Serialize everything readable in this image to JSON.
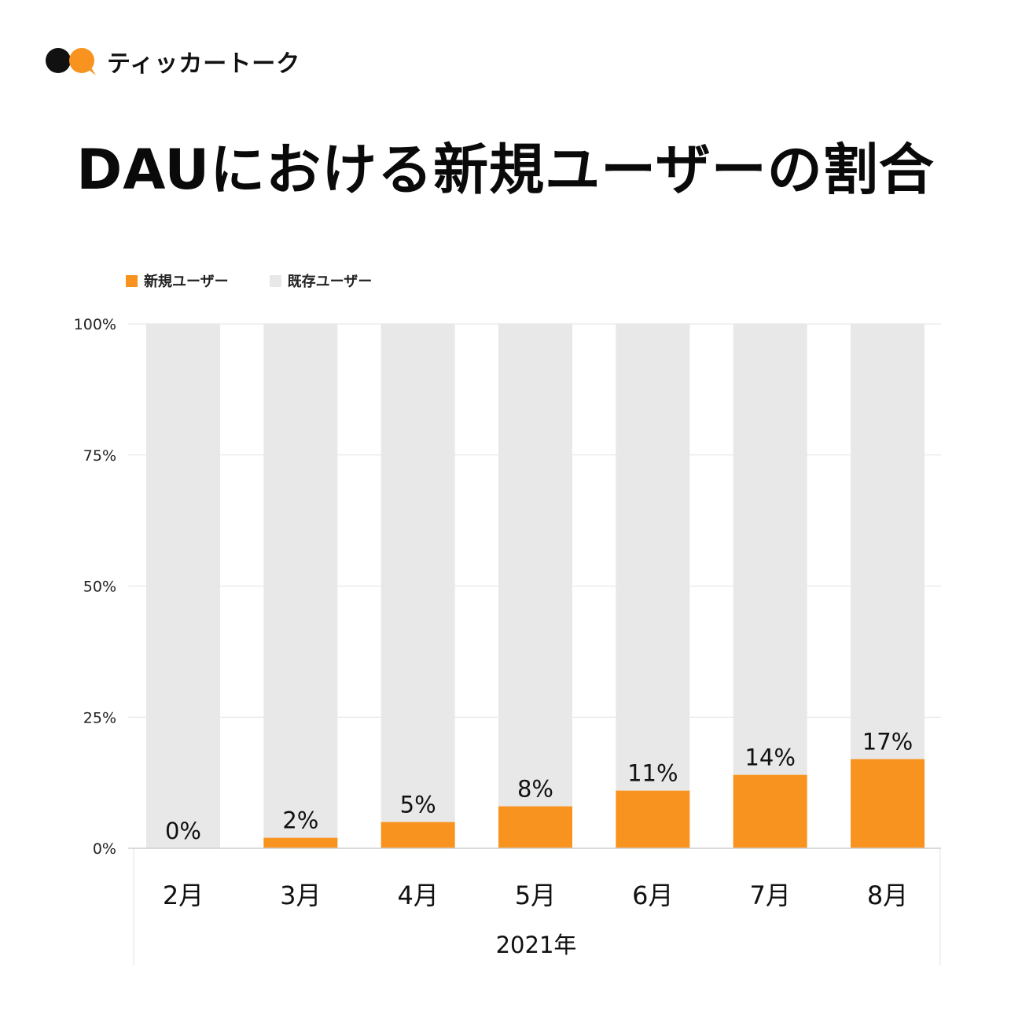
{
  "brand": {
    "name": "ティッカートーク",
    "logo_icon": "two-speech-bubbles-logo",
    "logo_colors": [
      "#111111",
      "#F7931E"
    ]
  },
  "title": "DAUにおける新規ユーザーの割合",
  "chart_data": {
    "type": "bar",
    "stacked": true,
    "categories": [
      "2月",
      "3月",
      "4月",
      "5月",
      "6月",
      "7月",
      "8月"
    ],
    "series": [
      {
        "name": "新規ユーザー",
        "color": "#F7931E",
        "values": [
          0,
          2,
          5,
          8,
          11,
          14,
          17
        ]
      },
      {
        "name": "既存ユーザー",
        "color": "#E8E8E8",
        "values": [
          100,
          98,
          95,
          92,
          89,
          86,
          83
        ]
      }
    ],
    "data_labels": [
      "0%",
      "2%",
      "5%",
      "8%",
      "11%",
      "14%",
      "17%"
    ],
    "yticks": [
      "0%",
      "25%",
      "50%",
      "75%",
      "100%"
    ],
    "ylim": [
      0,
      100
    ],
    "x_group_label": "2021年",
    "xlabel": "",
    "ylabel": "",
    "legend_position": "top-left",
    "grid": true
  }
}
